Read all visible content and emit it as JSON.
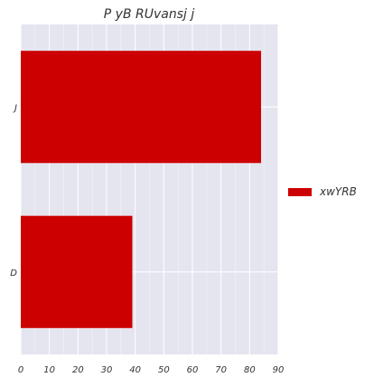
{
  "chart_data": {
    "type": "bar",
    "orientation": "horizontal",
    "title": "P yB RUvansj j",
    "xlabel": "",
    "ylabel": "",
    "categories": [
      "J",
      "D"
    ],
    "series": [
      {
        "name": "xwYRB",
        "color": "#cc0000",
        "values": [
          84,
          39
        ]
      }
    ],
    "xlim": [
      0,
      90
    ],
    "xticks": [
      0,
      10,
      20,
      30,
      40,
      50,
      60,
      70,
      80,
      90
    ],
    "grid": true,
    "legend_position": "right"
  },
  "colors": {
    "plot_background": "#e5e5ef",
    "grid": "#ffffff",
    "bar": "#cc0000",
    "text": "#333333"
  }
}
